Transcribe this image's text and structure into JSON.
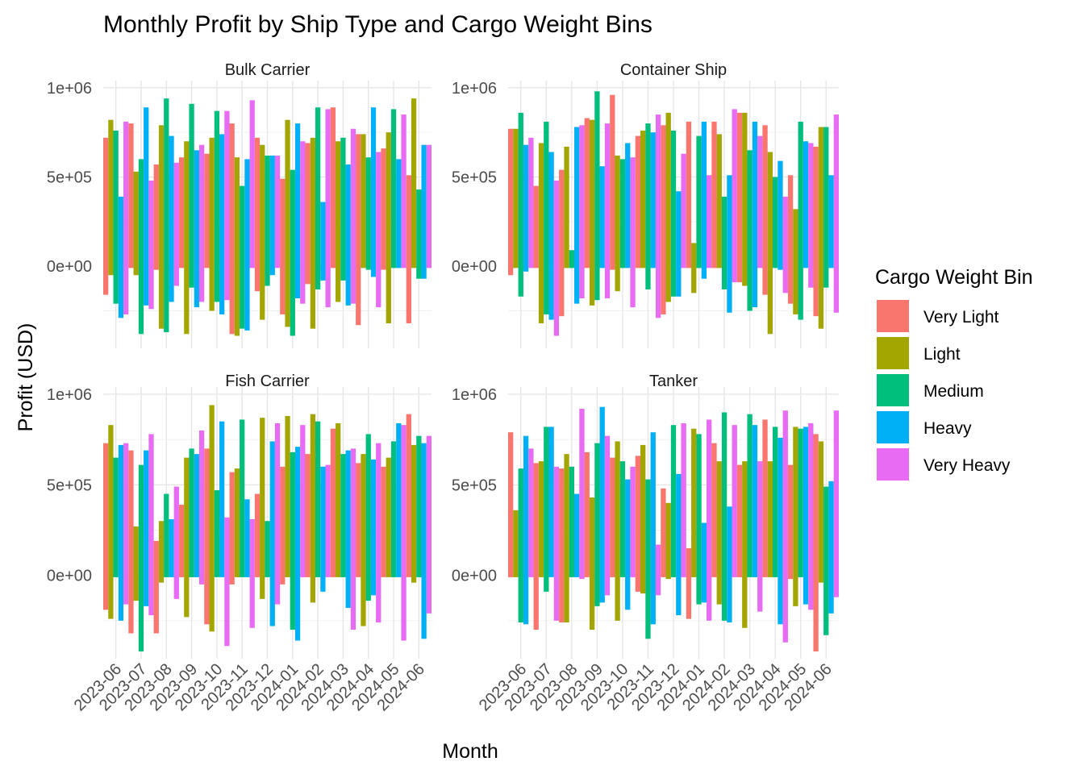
{
  "chart_data": {
    "type": "bar",
    "title": "Monthly Profit by Ship Type and Cargo Weight Bins",
    "xlabel": "Month",
    "ylabel": "Profit (USD)",
    "legend_title": "Cargo Weight Bin",
    "legend_position": "right",
    "grid": true,
    "categories": [
      "2023-06",
      "2023-07",
      "2023-08",
      "2023-09",
      "2023-10",
      "2023-11",
      "2023-12",
      "2024-01",
      "2024-02",
      "2024-03",
      "2024-04",
      "2024-05",
      "2024-06"
    ],
    "series_names": [
      "Very Light",
      "Light",
      "Medium",
      "Heavy",
      "Very Heavy"
    ],
    "colors": [
      "#F8766D",
      "#A3A500",
      "#00BF7D",
      "#00B0F6",
      "#E76BF3"
    ],
    "y_ticks": [
      0,
      500000,
      1000000
    ],
    "y_tick_labels": [
      "0e+00",
      "5e+05",
      "1e+06"
    ],
    "panels": [
      {
        "name": "Bulk Carrier",
        "ylim": [
          -460000,
          1040000
        ],
        "values": [
          [
            720000,
            820000,
            760000,
            390000,
            810000
          ],
          [
            800000,
            530000,
            600000,
            890000,
            480000
          ],
          [
            570000,
            790000,
            940000,
            730000,
            580000
          ],
          [
            610000,
            700000,
            910000,
            650000,
            680000
          ],
          [
            630000,
            720000,
            870000,
            740000,
            870000
          ],
          [
            800000,
            610000,
            450000,
            600000,
            930000
          ],
          [
            720000,
            680000,
            620000,
            620000,
            620000
          ],
          [
            490000,
            820000,
            540000,
            800000,
            700000
          ],
          [
            690000,
            720000,
            890000,
            360000,
            880000
          ],
          [
            890000,
            700000,
            720000,
            570000,
            770000
          ],
          [
            740000,
            740000,
            610000,
            890000,
            640000
          ],
          [
            660000,
            750000,
            880000,
            600000,
            850000
          ],
          [
            510000,
            940000,
            430000,
            680000,
            680000
          ]
        ],
        "lows": [
          [
            -160000,
            -50000,
            -210000,
            -290000,
            -270000
          ],
          [
            -10000,
            -50000,
            -380000,
            -220000,
            -240000
          ],
          [
            -20000,
            -350000,
            -370000,
            -200000,
            -110000
          ],
          [
            -10000,
            -380000,
            -120000,
            -230000,
            -200000
          ],
          [
            -10000,
            -250000,
            -200000,
            -270000,
            -190000
          ],
          [
            -380000,
            -390000,
            -350000,
            -360000,
            -10000
          ],
          [
            -140000,
            -300000,
            -110000,
            -50000,
            -10000
          ],
          [
            -270000,
            -340000,
            -390000,
            -180000,
            -210000
          ],
          [
            -100000,
            -350000,
            -130000,
            -80000,
            -230000
          ],
          [
            -10000,
            -200000,
            -80000,
            -220000,
            -210000
          ],
          [
            -330000,
            -10000,
            -20000,
            -60000,
            -230000
          ],
          [
            -20000,
            -320000,
            -10000,
            -10000,
            -10000
          ],
          [
            -320000,
            -10000,
            -70000,
            -70000,
            -10000
          ]
        ]
      },
      {
        "name": "Container Ship",
        "ylim": [
          -460000,
          1040000
        ],
        "values": [
          [
            770000,
            770000,
            860000,
            680000,
            720000
          ],
          [
            450000,
            690000,
            810000,
            640000,
            480000
          ],
          [
            540000,
            670000,
            90000,
            780000,
            790000
          ],
          [
            830000,
            820000,
            980000,
            560000,
            800000
          ],
          [
            960000,
            620000,
            600000,
            690000,
            610000
          ],
          [
            730000,
            760000,
            800000,
            750000,
            850000
          ],
          [
            790000,
            860000,
            760000,
            420000,
            630000
          ],
          [
            810000,
            130000,
            730000,
            810000,
            510000
          ],
          [
            810000,
            740000,
            390000,
            510000,
            880000
          ],
          [
            860000,
            860000,
            650000,
            810000,
            730000
          ],
          [
            790000,
            640000,
            500000,
            590000,
            390000
          ],
          [
            510000,
            320000,
            810000,
            700000,
            690000
          ],
          [
            670000,
            780000,
            780000,
            510000,
            850000
          ]
        ],
        "lows": [
          [
            -50000,
            -10000,
            -170000,
            -30000,
            -10000
          ],
          [
            -10000,
            -320000,
            -270000,
            -300000,
            -390000
          ],
          [
            -280000,
            -10000,
            -10000,
            -210000,
            -180000
          ],
          [
            -10000,
            -220000,
            -190000,
            -10000,
            -180000
          ],
          [
            -20000,
            -140000,
            -10000,
            -10000,
            -230000
          ],
          [
            -10000,
            -10000,
            -130000,
            -10000,
            -290000
          ],
          [
            -270000,
            -200000,
            -170000,
            -170000,
            -10000
          ],
          [
            -10000,
            -150000,
            -10000,
            -70000,
            -10000
          ],
          [
            -10000,
            -10000,
            -130000,
            -260000,
            -90000
          ],
          [
            -90000,
            -110000,
            -250000,
            -230000,
            -10000
          ],
          [
            -160000,
            -380000,
            -10000,
            -20000,
            -150000
          ],
          [
            -210000,
            -270000,
            -300000,
            -10000,
            -120000
          ],
          [
            -280000,
            -350000,
            -120000,
            -10000,
            -260000
          ]
        ]
      },
      {
        "name": "Fish Carrier",
        "ylim": [
          -460000,
          1040000
        ],
        "values": [
          [
            730000,
            830000,
            650000,
            720000,
            730000
          ],
          [
            690000,
            270000,
            610000,
            690000,
            780000
          ],
          [
            190000,
            300000,
            450000,
            310000,
            490000
          ],
          [
            390000,
            650000,
            700000,
            670000,
            800000
          ],
          [
            700000,
            940000,
            470000,
            850000,
            320000
          ],
          [
            570000,
            590000,
            860000,
            420000,
            310000
          ],
          [
            450000,
            870000,
            300000,
            740000,
            840000
          ],
          [
            600000,
            880000,
            680000,
            710000,
            830000
          ],
          [
            670000,
            890000,
            850000,
            600000,
            610000
          ],
          [
            810000,
            840000,
            670000,
            690000,
            700000
          ],
          [
            620000,
            670000,
            780000,
            640000,
            730000
          ],
          [
            600000,
            650000,
            740000,
            840000,
            830000
          ],
          [
            890000,
            720000,
            770000,
            730000,
            770000
          ]
        ],
        "lows": [
          [
            -190000,
            -240000,
            -10000,
            -250000,
            -160000
          ],
          [
            -320000,
            -140000,
            -420000,
            -170000,
            -220000
          ],
          [
            -320000,
            -40000,
            -10000,
            -10000,
            -130000
          ],
          [
            -10000,
            -230000,
            -10000,
            -10000,
            -50000
          ],
          [
            -270000,
            -310000,
            -10000,
            -10000,
            -390000
          ],
          [
            -50000,
            -10000,
            -10000,
            -10000,
            -290000
          ],
          [
            -10000,
            -130000,
            -10000,
            -280000,
            -160000
          ],
          [
            -50000,
            -10000,
            -300000,
            -360000,
            -10000
          ],
          [
            -10000,
            -150000,
            -10000,
            -90000,
            -10000
          ],
          [
            -10000,
            -10000,
            -10000,
            -180000,
            -300000
          ],
          [
            -10000,
            -280000,
            -140000,
            -110000,
            -260000
          ],
          [
            -10000,
            -10000,
            -10000,
            -10000,
            -360000
          ],
          [
            -10000,
            -40000,
            -10000,
            -350000,
            -210000
          ]
        ]
      },
      {
        "name": "Tanker",
        "ylim": [
          -460000,
          1040000
        ],
        "values": [
          [
            790000,
            360000,
            590000,
            770000,
            700000
          ],
          [
            620000,
            630000,
            820000,
            820000,
            600000
          ],
          [
            590000,
            670000,
            600000,
            450000,
            920000
          ],
          [
            680000,
            430000,
            730000,
            930000,
            770000
          ],
          [
            650000,
            740000,
            630000,
            530000,
            600000
          ],
          [
            660000,
            720000,
            530000,
            790000,
            170000
          ],
          [
            480000,
            400000,
            830000,
            560000,
            840000
          ],
          [
            150000,
            810000,
            780000,
            290000,
            860000
          ],
          [
            730000,
            630000,
            900000,
            380000,
            830000
          ],
          [
            610000,
            630000,
            890000,
            830000,
            630000
          ],
          [
            860000,
            630000,
            820000,
            760000,
            910000
          ],
          [
            610000,
            820000,
            810000,
            820000,
            840000
          ],
          [
            780000,
            740000,
            490000,
            520000,
            910000
          ]
        ],
        "lows": [
          [
            -10000,
            -10000,
            -260000,
            -270000,
            -10000
          ],
          [
            -300000,
            -10000,
            -90000,
            -10000,
            -250000
          ],
          [
            -260000,
            -260000,
            -10000,
            -10000,
            -20000
          ],
          [
            -10000,
            -300000,
            -170000,
            -150000,
            -110000
          ],
          [
            -10000,
            -250000,
            -10000,
            -190000,
            -10000
          ],
          [
            -90000,
            -100000,
            -350000,
            -270000,
            -110000
          ],
          [
            -10000,
            -20000,
            -10000,
            -220000,
            -10000
          ],
          [
            -240000,
            -10000,
            -160000,
            -150000,
            -250000
          ],
          [
            -10000,
            -160000,
            -250000,
            -260000,
            -10000
          ],
          [
            -10000,
            -290000,
            -10000,
            -10000,
            -200000
          ],
          [
            -10000,
            -10000,
            -10000,
            -270000,
            -370000
          ],
          [
            -20000,
            -170000,
            -10000,
            -160000,
            -190000
          ],
          [
            -420000,
            -40000,
            -330000,
            -210000,
            -120000
          ]
        ]
      }
    ]
  }
}
